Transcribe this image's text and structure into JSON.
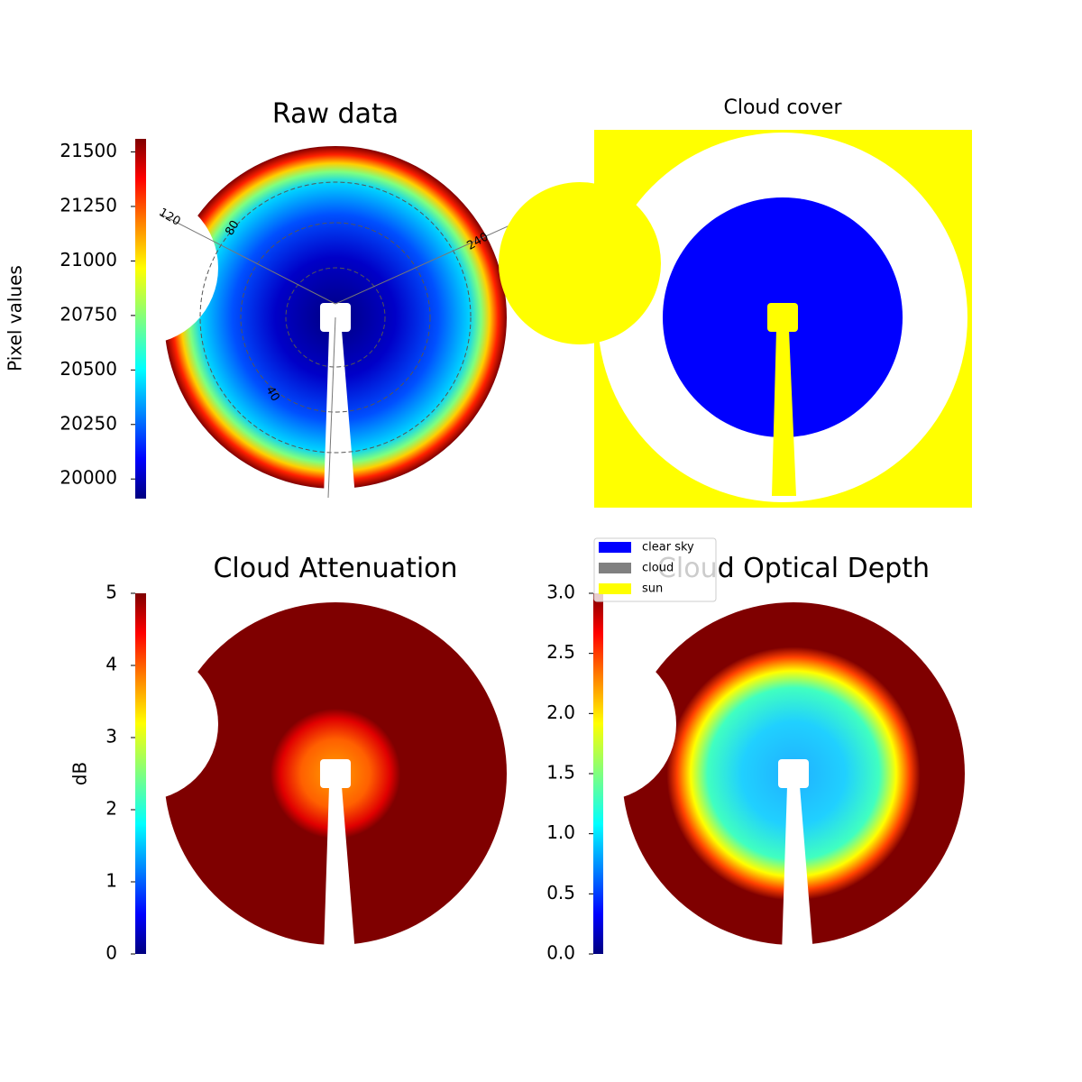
{
  "chart_data": [
    {
      "type": "image",
      "title": "Raw data",
      "ylabel": "Pixel values",
      "colormap": "jet",
      "ylim": [
        19910,
        21560
      ],
      "yticks": [
        20000,
        20250,
        20500,
        20750,
        21000,
        21250,
        21500
      ],
      "annotations": [
        "120",
        "80",
        "240",
        "40"
      ]
    },
    {
      "type": "categorical",
      "title": "Cloud cover",
      "series": [
        {
          "name": "clear sky",
          "color": "#0000ff"
        },
        {
          "name": "cloud",
          "color": "#808080"
        },
        {
          "name": "sun",
          "color": "#ffff00"
        }
      ]
    },
    {
      "type": "image",
      "title": "Cloud Attenuation",
      "ylabel": "dB",
      "colormap": "jet",
      "ylim": [
        0,
        5
      ],
      "yticks": [
        0,
        1,
        2,
        3,
        4,
        5
      ]
    },
    {
      "type": "image",
      "title": "Cloud Optical Depth",
      "colormap": "jet",
      "ylim": [
        0,
        3
      ],
      "yticks": [
        {
          "value": 0,
          "label": "0.0"
        },
        0.5,
        {
          "value": 1,
          "label": "1.0"
        },
        1.5,
        {
          "value": 2,
          "label": "2.0"
        },
        2.5,
        {
          "value": 3,
          "label": "3.0"
        }
      ]
    }
  ]
}
